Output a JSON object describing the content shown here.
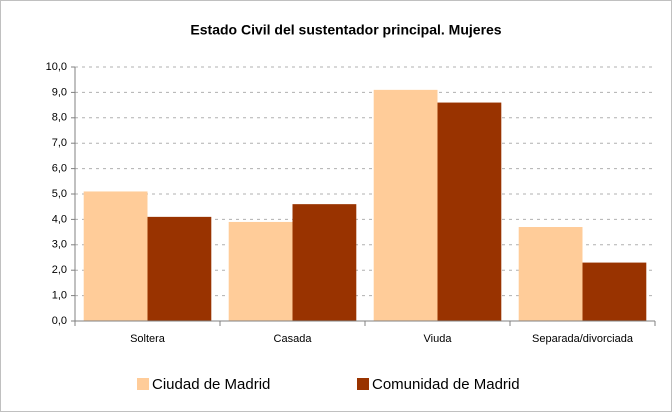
{
  "chart_data": {
    "type": "bar",
    "title": "Estado Civil del sustentador principal. Mujeres",
    "categories": [
      "Soltera",
      "Casada",
      "Viuda",
      "Separada/divorciada"
    ],
    "series": [
      {
        "name": "Ciudad de Madrid",
        "color": "#ffcc99",
        "values": [
          5.1,
          3.9,
          9.1,
          3.7
        ]
      },
      {
        "name": "Comunidad de Madrid",
        "color": "#993300",
        "values": [
          4.1,
          4.6,
          8.6,
          2.3
        ]
      }
    ],
    "ylim": [
      0,
      10
    ],
    "yticks": [
      {
        "value": 0,
        "label": "0,0"
      },
      {
        "value": 1,
        "label": "1,0"
      },
      {
        "value": 2,
        "label": "2,0"
      },
      {
        "value": 3,
        "label": "3,0"
      },
      {
        "value": 4,
        "label": "4,0"
      },
      {
        "value": 5,
        "label": "5,0"
      },
      {
        "value": 6,
        "label": "6,0"
      },
      {
        "value": 7,
        "label": "7,0"
      },
      {
        "value": 8,
        "label": "8,0"
      },
      {
        "value": 9,
        "label": "9,0"
      },
      {
        "value": 10,
        "label": "10,0"
      }
    ],
    "grid": true,
    "legend": "bottom"
  }
}
